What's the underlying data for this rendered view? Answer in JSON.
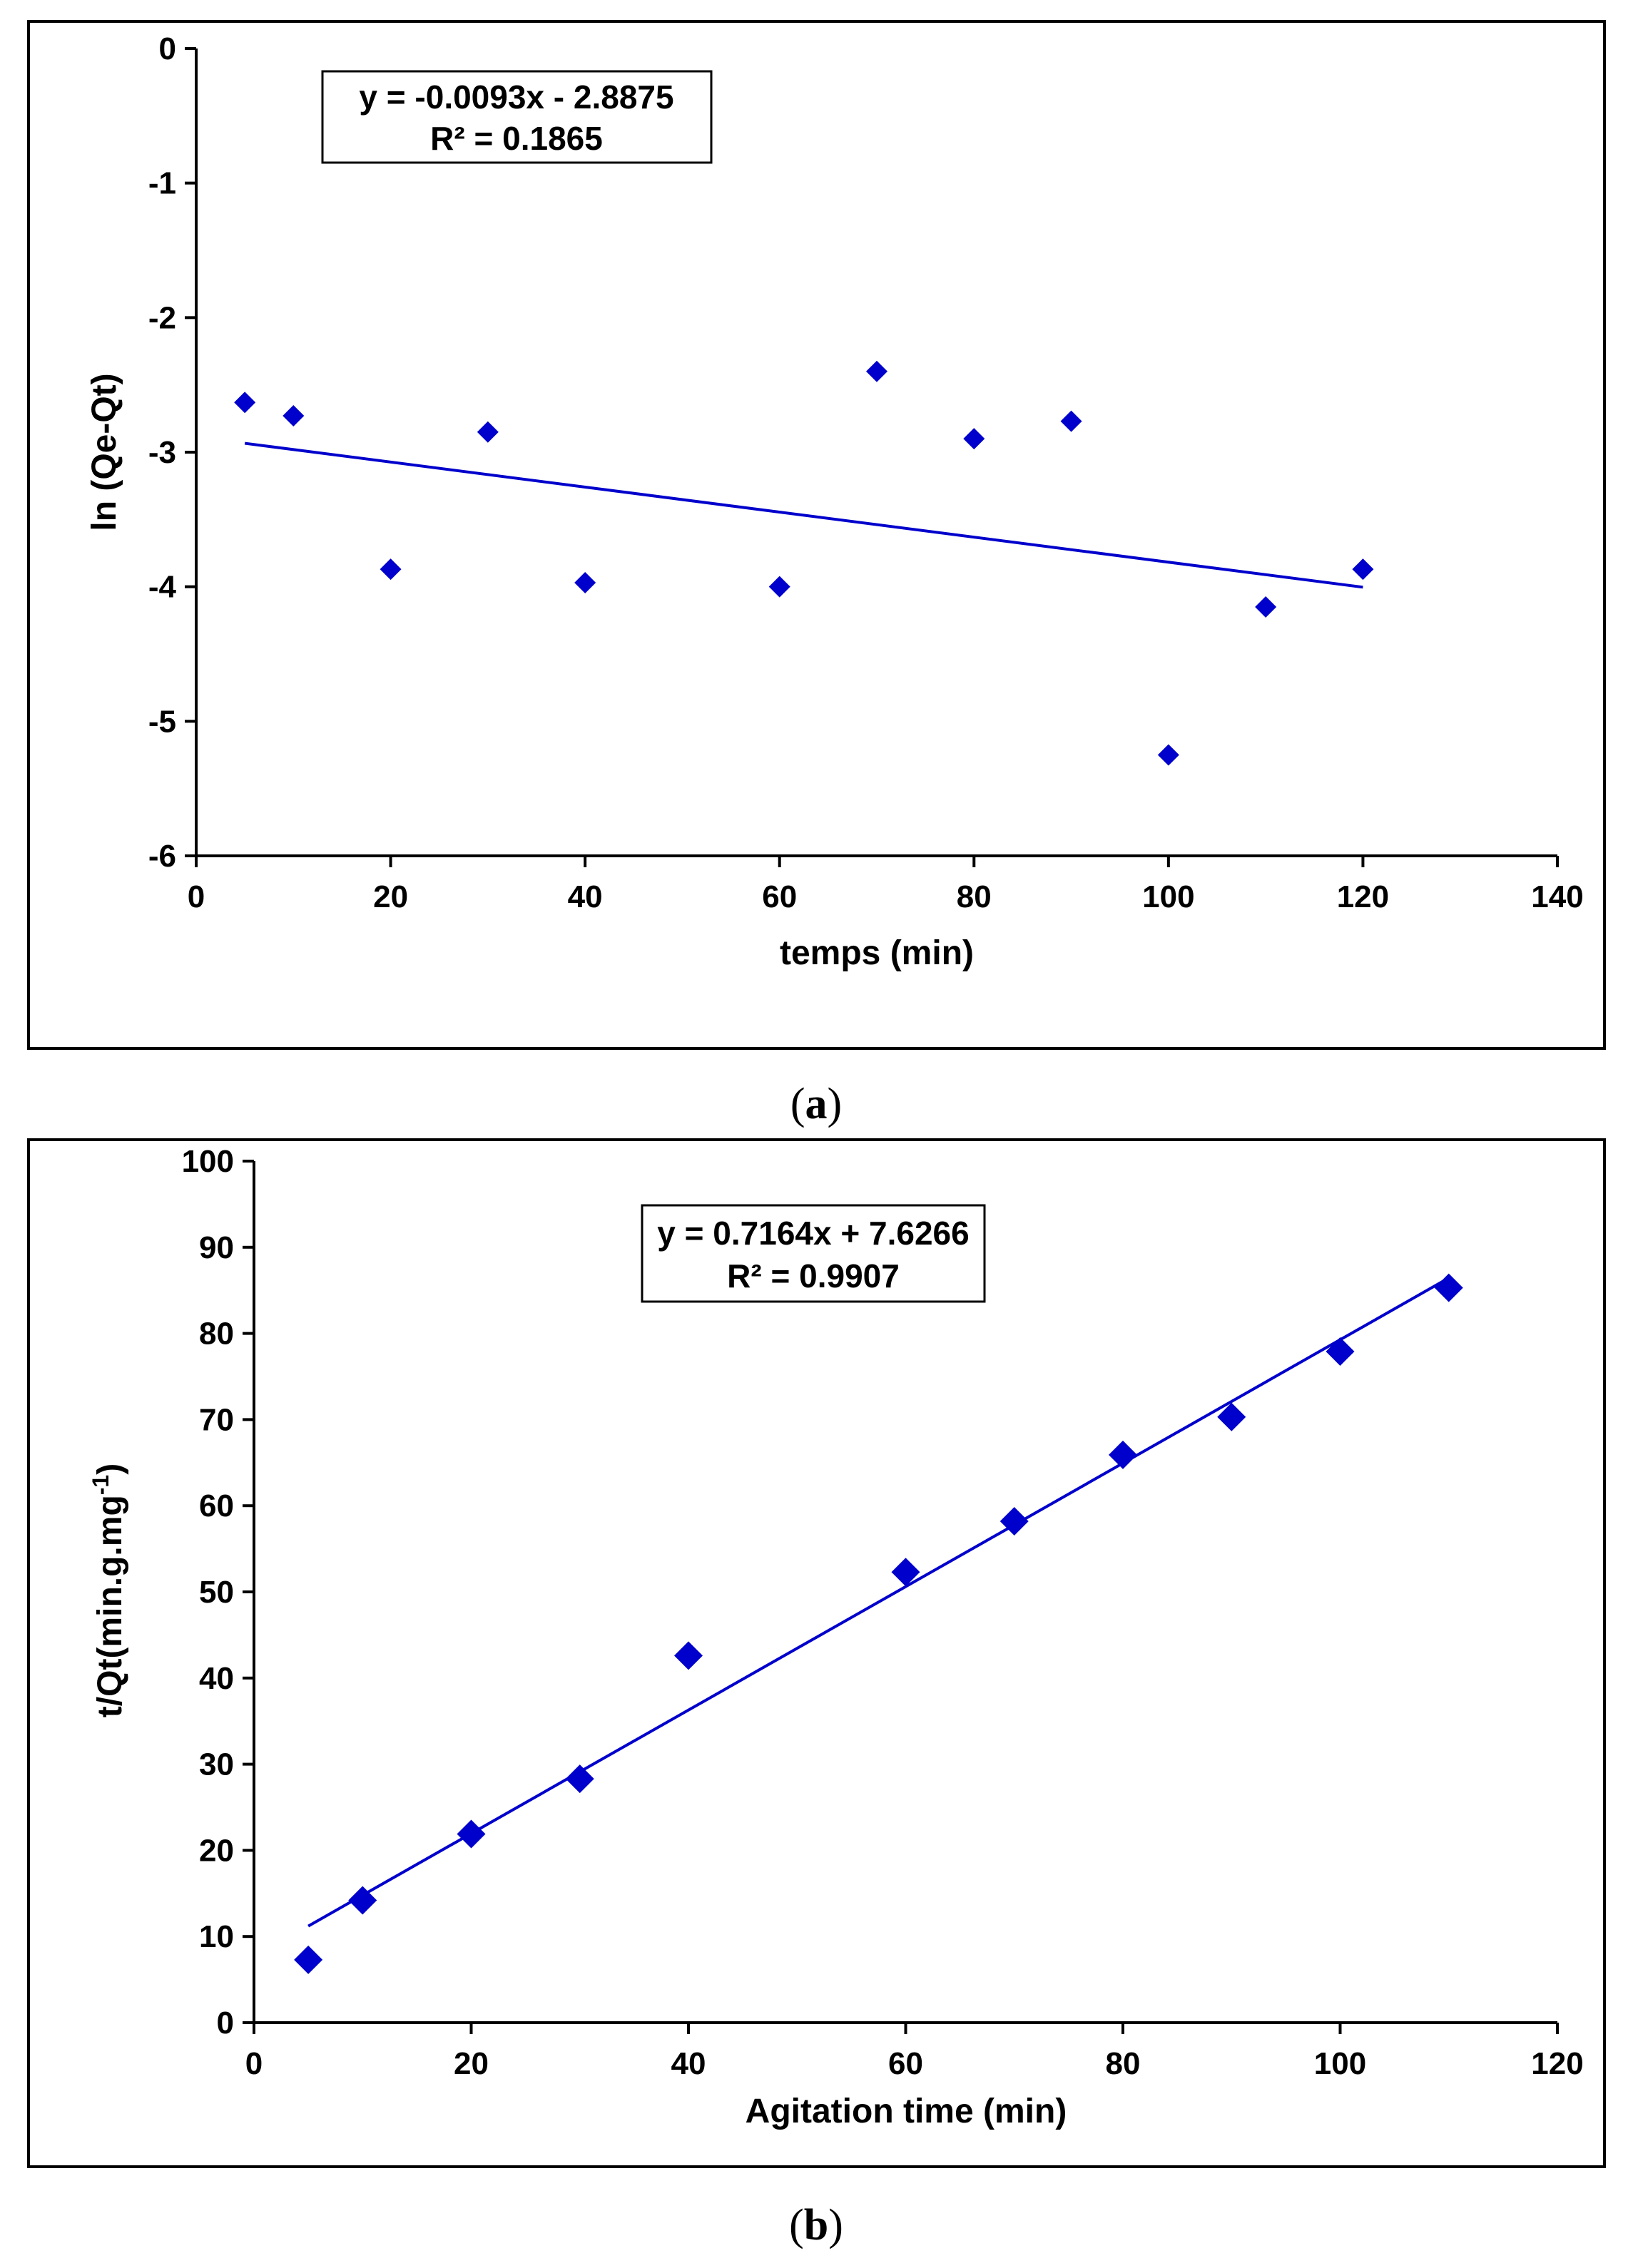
{
  "chart_data": [
    {
      "type": "scatter",
      "panel_label": "a",
      "xlabel": "temps (min)",
      "ylabel": "ln (Qe-Qt)",
      "xlim": [
        0,
        140
      ],
      "ylim": [
        -6,
        0
      ],
      "xticks": [
        0,
        20,
        40,
        60,
        80,
        100,
        120,
        140
      ],
      "yticks": [
        -6,
        -5,
        -4,
        -3,
        -2,
        -1,
        0
      ],
      "series": [
        {
          "name": "data",
          "marker": "diamond",
          "color": "#0000CC",
          "x": [
            5,
            10,
            20,
            30,
            40,
            60,
            70,
            80,
            90,
            100,
            110,
            120
          ],
          "y": [
            -2.63,
            -2.73,
            -3.87,
            -2.85,
            -3.97,
            -4.0,
            -2.4,
            -2.9,
            -2.77,
            -5.25,
            -4.15,
            -3.87
          ]
        }
      ],
      "trendline": {
        "slope": -0.0093,
        "intercept": -2.8875,
        "x_range": [
          5,
          120
        ],
        "color": "#0000CC"
      },
      "equation": "y = -0.0093x - 2.8875",
      "r_squared": "R² = 0.1865"
    },
    {
      "type": "scatter",
      "panel_label": "b",
      "xlabel": "Agitation time (min)",
      "ylabel": "t/Qt(min.g.mg",
      "ylabel_superscript": "-1",
      "ylabel_suffix": ")",
      "xlim": [
        0,
        120
      ],
      "ylim": [
        0,
        100
      ],
      "xticks": [
        0,
        20,
        40,
        60,
        80,
        100,
        120
      ],
      "yticks": [
        0,
        10,
        20,
        30,
        40,
        50,
        60,
        70,
        80,
        90,
        100
      ],
      "series": [
        {
          "name": "data",
          "marker": "diamond",
          "color": "#0000CC",
          "x": [
            5,
            10,
            20,
            30,
            40,
            60,
            70,
            80,
            90,
            100,
            110
          ],
          "y": [
            7.3,
            14.2,
            21.9,
            28.3,
            42.6,
            52.3,
            58.2,
            65.9,
            70.3,
            77.9,
            85.3
          ]
        }
      ],
      "trendline": {
        "slope": 0.7164,
        "intercept": 7.6266,
        "x_range": [
          5,
          110
        ],
        "color": "#0000CC"
      },
      "equation": "y = 0.7164x + 7.6266",
      "r_squared": "R² = 0.9907"
    }
  ],
  "colors": {
    "marker": "#0000CC",
    "line": "#0000CC",
    "axis": "#000000"
  }
}
